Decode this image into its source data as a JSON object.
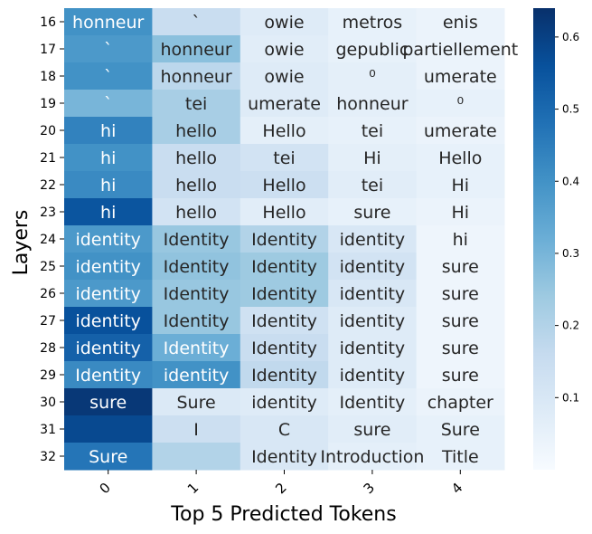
{
  "chart_data": {
    "type": "heatmap",
    "xlabel": "Top 5 Predicted Tokens",
    "ylabel": "Layers",
    "x_categories": [
      "0",
      "1",
      "2",
      "3",
      "4"
    ],
    "y_categories": [
      "16",
      "17",
      "18",
      "19",
      "20",
      "21",
      "22",
      "23",
      "24",
      "25",
      "26",
      "27",
      "28",
      "29",
      "30",
      "31",
      "32"
    ],
    "colormap": "Blues",
    "colorbar": {
      "min": 0.0,
      "max": 0.64,
      "ticks": [
        "0.1",
        "0.2",
        "0.3",
        "0.4",
        "0.5",
        "0.6"
      ],
      "tick_values": [
        0.1,
        0.2,
        0.3,
        0.4,
        0.5,
        0.6
      ]
    },
    "tokens": [
      [
        "honneur",
        "`",
        "owie",
        "metros",
        "enis"
      ],
      [
        "`",
        "honneur",
        "owie",
        "gepublic",
        "partiellement"
      ],
      [
        "`",
        "honneur",
        "owie",
        "⁰",
        "umerate"
      ],
      [
        "`",
        "tei",
        "umerate",
        "honneur",
        "⁰"
      ],
      [
        "hi",
        "hello",
        "Hello",
        "tei",
        "umerate"
      ],
      [
        "hi",
        "hello",
        "tei",
        "Hi",
        "Hello"
      ],
      [
        "hi",
        "hello",
        "Hello",
        "tei",
        "Hi"
      ],
      [
        "hi",
        "hello",
        "Hello",
        "sure",
        "Hi"
      ],
      [
        "identity",
        "Identity",
        "Identity",
        "identity",
        "hi"
      ],
      [
        "identity",
        "Identity",
        "Identity",
        "identity",
        "sure"
      ],
      [
        "identity",
        "Identity",
        "Identity",
        "identity",
        "sure"
      ],
      [
        "identity",
        "Identity",
        "Identity",
        "identity",
        "sure"
      ],
      [
        "identity",
        "Identity",
        "Identity",
        "identity",
        "sure"
      ],
      [
        "Identity",
        "identity",
        "Identity",
        "identity",
        "sure"
      ],
      [
        "sure",
        "Sure",
        "identity",
        "Identity",
        "chapter"
      ],
      [
        "",
        "I",
        "C",
        "sure",
        "Sure"
      ],
      [
        "Sure",
        "",
        "Identity",
        "Introduction",
        "Title"
      ]
    ],
    "values": [
      [
        0.4,
        0.15,
        0.08,
        0.05,
        0.04
      ],
      [
        0.38,
        0.27,
        0.07,
        0.05,
        0.04
      ],
      [
        0.4,
        0.18,
        0.08,
        0.06,
        0.04
      ],
      [
        0.3,
        0.22,
        0.08,
        0.06,
        0.05
      ],
      [
        0.44,
        0.22,
        0.06,
        0.05,
        0.04
      ],
      [
        0.4,
        0.15,
        0.12,
        0.06,
        0.05
      ],
      [
        0.42,
        0.15,
        0.14,
        0.07,
        0.05
      ],
      [
        0.55,
        0.12,
        0.07,
        0.05,
        0.04
      ],
      [
        0.38,
        0.25,
        0.2,
        0.1,
        0.03
      ],
      [
        0.4,
        0.26,
        0.24,
        0.12,
        0.03
      ],
      [
        0.38,
        0.25,
        0.24,
        0.1,
        0.03
      ],
      [
        0.56,
        0.25,
        0.13,
        0.08,
        0.03
      ],
      [
        0.52,
        0.32,
        0.15,
        0.08,
        0.03
      ],
      [
        0.42,
        0.4,
        0.17,
        0.08,
        0.03
      ],
      [
        0.62,
        0.09,
        0.08,
        0.06,
        0.04
      ],
      [
        0.58,
        0.14,
        0.1,
        0.07,
        0.05
      ],
      [
        0.47,
        0.2,
        0.1,
        0.06,
        0.05
      ]
    ]
  }
}
